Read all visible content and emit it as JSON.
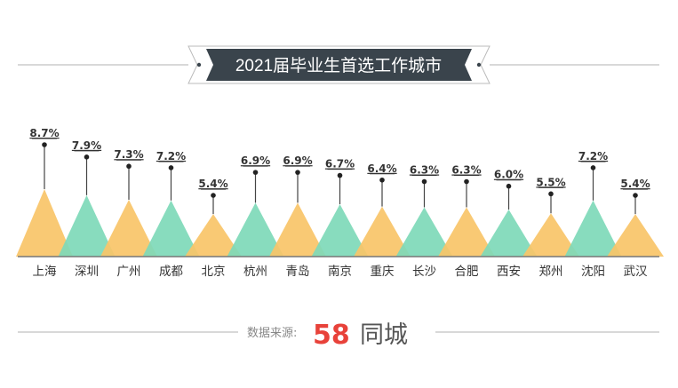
{
  "chart_data": {
    "type": "bar",
    "title": "2021届毕业生首选工作城市",
    "categories": [
      "上海",
      "深圳",
      "广州",
      "成都",
      "北京",
      "杭州",
      "青岛",
      "南京",
      "重庆",
      "长沙",
      "合肥",
      "西安",
      "郑州",
      "沈阳",
      "武汉"
    ],
    "values": [
      8.7,
      7.9,
      7.3,
      7.2,
      5.4,
      6.9,
      6.9,
      6.7,
      6.4,
      6.3,
      6.3,
      6.0,
      5.5,
      7.2,
      5.4
    ],
    "value_labels": [
      "8.7%",
      "7.9%",
      "7.3%",
      "7.2%",
      "5.4%",
      "6.9%",
      "6.9%",
      "6.7%",
      "6.4%",
      "6.3%",
      "6.3%",
      "6.0%",
      "5.5%",
      "7.2%",
      "5.4%"
    ],
    "unit": "%",
    "grid": false,
    "colors": [
      "#F9C468",
      "#7ED9B9"
    ]
  },
  "footer": {
    "source_label": "数据来源:",
    "logo_number": "58",
    "logo_text": "同城"
  }
}
